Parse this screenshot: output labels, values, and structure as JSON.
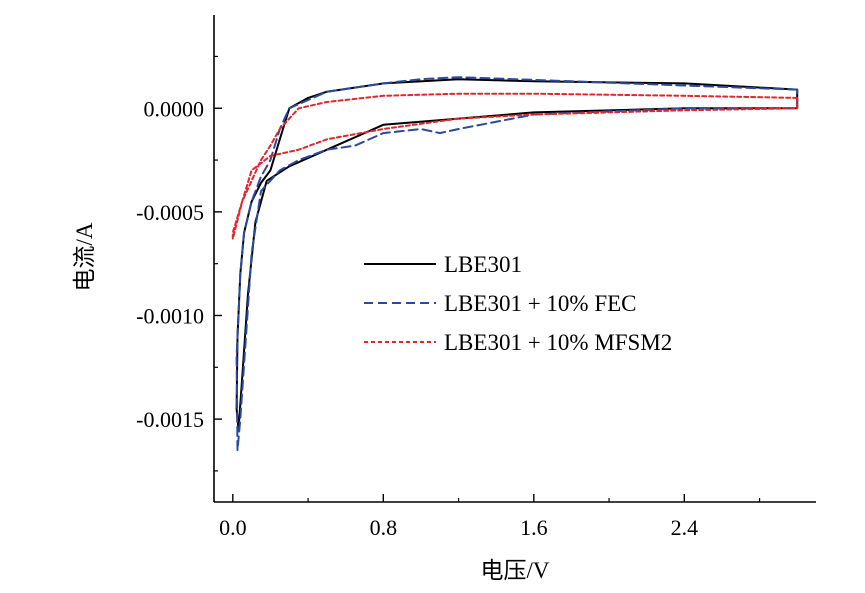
{
  "chart_data": {
    "type": "line",
    "title": "",
    "xlabel": "电压/V",
    "ylabel": "电流/A",
    "xlim": [
      -0.1,
      3.1
    ],
    "ylim": [
      -0.0019,
      0.00045
    ],
    "xticks": [
      0.0,
      0.8,
      1.6,
      2.4
    ],
    "xtick_labels": [
      "0.0",
      "0.8",
      "1.6",
      "2.4"
    ],
    "yticks": [
      0.0,
      -0.0005,
      -0.001,
      -0.0015
    ],
    "ytick_labels": [
      "0.0000",
      "-0.0005",
      "-0.0010",
      "-0.0015"
    ],
    "grid": false,
    "legend_position": "center-right",
    "series": [
      {
        "name": "LBE301",
        "color": "#000000",
        "dash": "solid",
        "x": [
          3.0,
          2.4,
          1.6,
          1.2,
          0.8,
          0.5,
          0.4,
          0.3,
          0.25,
          0.2,
          0.15,
          0.1,
          0.06,
          0.04,
          0.025,
          0.02,
          0.03,
          0.05,
          0.08,
          0.12,
          0.18,
          0.3,
          0.5,
          0.8,
          1.2,
          1.6,
          2.4,
          3.0,
          3.0
        ],
        "y": [
          9e-05,
          0.00012,
          0.00013,
          0.00014,
          0.00012,
          8e-05,
          5e-05,
          0.0,
          -0.00015,
          -0.0003,
          -0.00036,
          -0.00045,
          -0.0006,
          -0.0008,
          -0.0011,
          -0.00145,
          -0.00155,
          -0.0013,
          -0.0009,
          -0.00055,
          -0.00035,
          -0.00028,
          -0.0002,
          -8e-05,
          -5e-05,
          -2e-05,
          0.0,
          0.0,
          9e-05
        ]
      },
      {
        "name": "LBE301 + 10% FEC",
        "color": "#2a4a9e",
        "dash": "dashed",
        "x": [
          3.0,
          2.4,
          1.8,
          1.5,
          1.2,
          1.0,
          0.8,
          0.5,
          0.4,
          0.3,
          0.25,
          0.2,
          0.15,
          0.1,
          0.06,
          0.04,
          0.03,
          0.02,
          0.025,
          0.04,
          0.07,
          0.1,
          0.15,
          0.25,
          0.35,
          0.5,
          0.65,
          0.8,
          1.0,
          1.1,
          1.2,
          1.6,
          2.4,
          3.0,
          3.0
        ],
        "y": [
          9e-05,
          0.00011,
          0.00013,
          0.00014,
          0.00015,
          0.00014,
          0.00012,
          8e-05,
          4e-05,
          0.0,
          -0.0001,
          -0.00025,
          -0.00033,
          -0.00045,
          -0.0006,
          -0.0008,
          -0.001,
          -0.0012,
          -0.00165,
          -0.0015,
          -0.0011,
          -0.0007,
          -0.0004,
          -0.0003,
          -0.00025,
          -0.0002,
          -0.00018,
          -0.00012,
          -0.0001,
          -0.00012,
          -0.0001,
          -3e-05,
          0.0,
          0.0,
          9e-05
        ]
      },
      {
        "name": "LBE301 + 10% MFSM2",
        "color": "#e3262c",
        "dash": "dotted",
        "x": [
          3.0,
          2.4,
          1.6,
          1.2,
          0.8,
          0.5,
          0.35,
          0.3,
          0.25,
          0.2,
          0.15,
          0.1,
          0.05,
          0.0,
          0.0,
          0.05,
          0.1,
          0.2,
          0.35,
          0.5,
          0.8,
          1.2,
          1.6,
          2.4,
          3.0,
          3.0
        ],
        "y": [
          5e-05,
          6e-05,
          7e-05,
          7e-05,
          6e-05,
          3e-05,
          0.0,
          -5e-05,
          -0.0001,
          -0.00018,
          -0.00025,
          -0.00035,
          -0.00045,
          -0.0006,
          -0.00063,
          -0.00045,
          -0.0003,
          -0.00023,
          -0.0002,
          -0.00015,
          -0.0001,
          -5e-05,
          -3e-05,
          -1e-05,
          0.0,
          5e-05
        ]
      }
    ]
  }
}
